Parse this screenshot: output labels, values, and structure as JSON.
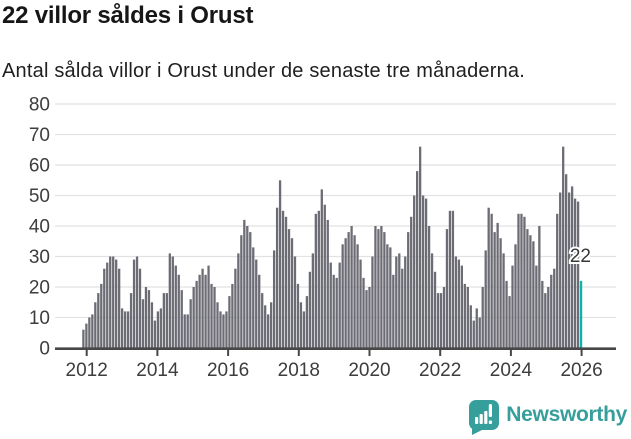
{
  "chart_data": {
    "type": "bar",
    "title": "22 villor såldes i Orust",
    "subtitle": "Antal sålda villor i Orust under de senaste tre månaderna.",
    "x_tick_labels": [
      "2012",
      "2014",
      "2016",
      "2018",
      "2020",
      "2022",
      "2024",
      "2026"
    ],
    "y_ticks": [
      0,
      10,
      20,
      30,
      40,
      50,
      60,
      70,
      80
    ],
    "ylim": [
      0,
      80
    ],
    "grid": "horizontal",
    "values": [
      6,
      8,
      10,
      11,
      15,
      18,
      21,
      26,
      28,
      30,
      30,
      29,
      26,
      13,
      12,
      12,
      18,
      29,
      30,
      26,
      16,
      20,
      19,
      15,
      9,
      12,
      13,
      18,
      18,
      31,
      30,
      27,
      24,
      19,
      11,
      11,
      16,
      20,
      22,
      24,
      26,
      24,
      27,
      21,
      20,
      15,
      12,
      11,
      12,
      17,
      21,
      26,
      31,
      37,
      42,
      40,
      38,
      33,
      29,
      24,
      18,
      14,
      11,
      15,
      32,
      46,
      55,
      45,
      43,
      39,
      36,
      30,
      21,
      15,
      12,
      17,
      25,
      31,
      44,
      45,
      52,
      47,
      42,
      28,
      24,
      23,
      28,
      34,
      36,
      38,
      40,
      37,
      34,
      29,
      23,
      19,
      20,
      30,
      40,
      39,
      40,
      38,
      34,
      33,
      24,
      30,
      31,
      26,
      30,
      38,
      43,
      50,
      58,
      66,
      50,
      49,
      40,
      31,
      25,
      18,
      18,
      20,
      39,
      45,
      45,
      30,
      29,
      27,
      21,
      20,
      14,
      9,
      13,
      10,
      20,
      32,
      46,
      44,
      38,
      41,
      36,
      31,
      22,
      17,
      27,
      34,
      44,
      44,
      43,
      39,
      37,
      35,
      27,
      40,
      22,
      18,
      20,
      24,
      26,
      44,
      51,
      66,
      57,
      51,
      53,
      49,
      48,
      22
    ],
    "highlight": {
      "index": 167,
      "value": 22,
      "label": "22"
    },
    "colors": {
      "bar": "#6c6c75",
      "highlight": "#0db3a8",
      "grid": "#e2e2e2",
      "axis": "#474747",
      "tick_label": "#3d3d3d",
      "annotation": "#383838"
    }
  },
  "footer": {
    "brand": "Newsworthy",
    "brand_color": "#379f9b",
    "logo_icon": "speech-bubble-bar-chart-icon"
  }
}
